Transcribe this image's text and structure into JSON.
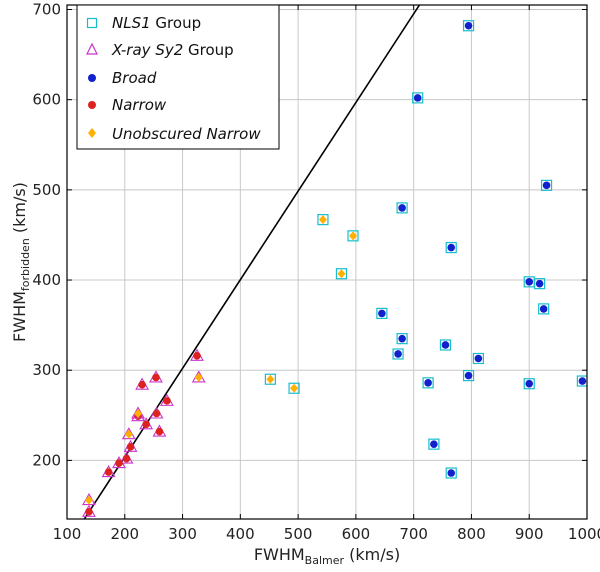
{
  "chart_data": {
    "type": "scatter",
    "xlabel_main": "FWHM",
    "xlabel_sub": "Balmer",
    "xlabel_unit": " (km/s)",
    "ylabel_main": "FWHM",
    "ylabel_sub": "forbidden",
    "ylabel_unit": " (km/s)",
    "xlim": [
      100,
      1000
    ],
    "ylim": [
      135,
      705
    ],
    "xticks": [
      100,
      200,
      300,
      400,
      500,
      600,
      700,
      800,
      900,
      1000
    ],
    "yticks": [
      200,
      300,
      400,
      500,
      600,
      700
    ],
    "grid": true,
    "legend_position": "top-left",
    "line": {
      "x": [
        130,
        710
      ],
      "y": [
        135,
        705
      ],
      "color": "#000000"
    },
    "legend": [
      {
        "marker": "square",
        "italic": "NLS1",
        "rest": " Group",
        "color": "#17becf"
      },
      {
        "marker": "triangle",
        "italic": "X-ray Sy2",
        "rest": " Group",
        "color": "#cc33cc"
      },
      {
        "marker": "circle",
        "italic": "Broad",
        "rest": "",
        "color": "#1122cc"
      },
      {
        "marker": "circle",
        "italic": "Narrow",
        "rest": "",
        "color": "#dd2222"
      },
      {
        "marker": "diamond",
        "italic": "Unobscured Narrow",
        "rest": "",
        "color": "#ffb000"
      }
    ],
    "series": [
      {
        "name": "Broad",
        "group": "NLS1",
        "color": "#1122cc",
        "points": [
          [
            795,
            682
          ],
          [
            707,
            602
          ],
          [
            930,
            505
          ],
          [
            680,
            480
          ],
          [
            765,
            436
          ],
          [
            900,
            398
          ],
          [
            918,
            396
          ],
          [
            925,
            368
          ],
          [
            645,
            363
          ],
          [
            680,
            335
          ],
          [
            755,
            328
          ],
          [
            673,
            318
          ],
          [
            812,
            313
          ],
          [
            795,
            294
          ],
          [
            725,
            286
          ],
          [
            900,
            285
          ],
          [
            992,
            288
          ],
          [
            735,
            218
          ],
          [
            765,
            186
          ]
        ]
      },
      {
        "name": "Unobscured Narrow",
        "group": "NLS1",
        "color": "#ffb000",
        "points": [
          [
            543,
            467
          ],
          [
            595,
            449
          ],
          [
            575,
            407
          ],
          [
            452,
            290
          ],
          [
            493,
            280
          ]
        ]
      },
      {
        "name": "Narrow",
        "group": "X-ray Sy2",
        "color": "#dd2222",
        "points": [
          [
            325,
            316
          ],
          [
            254,
            292
          ],
          [
            230,
            284
          ],
          [
            273,
            266
          ],
          [
            255,
            252
          ],
          [
            223,
            249
          ],
          [
            237,
            240
          ],
          [
            260,
            232
          ],
          [
            210,
            215
          ],
          [
            203,
            202
          ],
          [
            190,
            197
          ],
          [
            172,
            187
          ],
          [
            138,
            143
          ]
        ]
      },
      {
        "name": "Unobscured Narrow",
        "group": "X-ray Sy2",
        "color": "#ffb000",
        "points": [
          [
            328,
            292
          ],
          [
            223,
            252
          ],
          [
            207,
            229
          ],
          [
            138,
            156
          ]
        ]
      }
    ]
  }
}
